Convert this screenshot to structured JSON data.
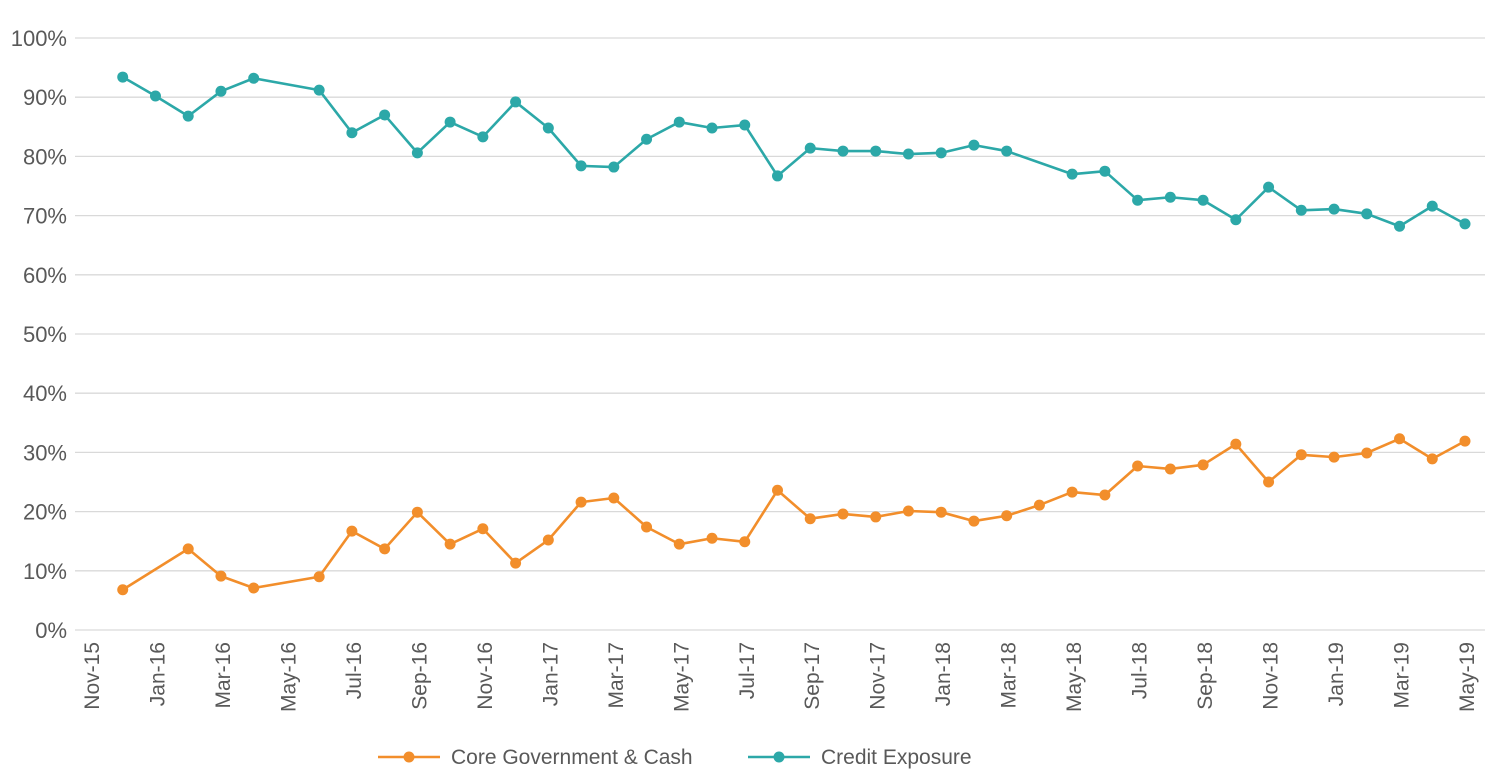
{
  "chart_data": {
    "type": "line",
    "title": "",
    "xlabel": "",
    "ylabel": "",
    "ylim": [
      0,
      100
    ],
    "y_ticks": [
      "0%",
      "10%",
      "20%",
      "30%",
      "40%",
      "50%",
      "60%",
      "70%",
      "80%",
      "90%",
      "100%"
    ],
    "x_ticks": [
      "Nov-15",
      "Jan-16",
      "Mar-16",
      "May-16",
      "Jul-16",
      "Sep-16",
      "Nov-16",
      "Jan-17",
      "Mar-17",
      "May-17",
      "Jul-17",
      "Sep-17",
      "Nov-17",
      "Jan-18",
      "Mar-18",
      "May-18",
      "Jul-18",
      "Sep-18",
      "Nov-18",
      "Jan-19",
      "Mar-19",
      "May-19"
    ],
    "xlim": [
      "Nov-15",
      "May-19"
    ],
    "grid": "horizontal",
    "legend_position": "bottom",
    "series": [
      {
        "name": "Core Government & Cash",
        "color": "#F28E2B",
        "points": [
          [
            "Dec-15",
            6.8
          ],
          [
            "Feb-16",
            13.7
          ],
          [
            "Mar-16",
            9.1
          ],
          [
            "Apr-16",
            7.1
          ],
          [
            "Jun-16",
            9.0
          ],
          [
            "Jul-16",
            16.7
          ],
          [
            "Aug-16",
            13.7
          ],
          [
            "Sep-16",
            19.9
          ],
          [
            "Oct-16",
            14.5
          ],
          [
            "Nov-16",
            17.1
          ],
          [
            "Dec-16",
            11.3
          ],
          [
            "Jan-17",
            15.2
          ],
          [
            "Feb-17",
            21.6
          ],
          [
            "Mar-17",
            22.3
          ],
          [
            "Apr-17",
            17.4
          ],
          [
            "May-17",
            14.5
          ],
          [
            "Jun-17",
            15.5
          ],
          [
            "Jul-17",
            14.9
          ],
          [
            "Aug-17",
            23.6
          ],
          [
            "Sep-17",
            18.8
          ],
          [
            "Oct-17",
            19.6
          ],
          [
            "Nov-17",
            19.1
          ],
          [
            "Dec-17",
            20.1
          ],
          [
            "Jan-18",
            19.9
          ],
          [
            "Feb-18",
            18.4
          ],
          [
            "Mar-18",
            19.3
          ],
          [
            "Apr-18",
            21.1
          ],
          [
            "May-18",
            23.3
          ],
          [
            "Jun-18",
            22.8
          ],
          [
            "Jul-18",
            27.7
          ],
          [
            "Aug-18",
            27.2
          ],
          [
            "Sep-18",
            27.9
          ],
          [
            "Oct-18",
            31.4
          ],
          [
            "Nov-18",
            25.0
          ],
          [
            "Dec-18",
            29.6
          ],
          [
            "Jan-19",
            29.2
          ],
          [
            "Feb-19",
            29.9
          ],
          [
            "Mar-19",
            32.3
          ],
          [
            "Apr-19",
            28.9
          ],
          [
            "May-19",
            31.9
          ]
        ]
      },
      {
        "name": "Credit Exposure",
        "color": "#2CA8A8",
        "points": [
          [
            "Dec-15",
            93.4
          ],
          [
            "Jan-16",
            90.2
          ],
          [
            "Feb-16",
            86.8
          ],
          [
            "Mar-16",
            91.0
          ],
          [
            "Apr-16",
            93.2
          ],
          [
            "Jun-16",
            91.2
          ],
          [
            "Jul-16",
            84.0
          ],
          [
            "Aug-16",
            87.0
          ],
          [
            "Sep-16",
            80.6
          ],
          [
            "Oct-16",
            85.8
          ],
          [
            "Nov-16",
            83.3
          ],
          [
            "Dec-16",
            89.2
          ],
          [
            "Jan-17",
            84.8
          ],
          [
            "Feb-17",
            78.4
          ],
          [
            "Mar-17",
            78.2
          ],
          [
            "Apr-17",
            82.9
          ],
          [
            "May-17",
            85.8
          ],
          [
            "Jun-17",
            84.8
          ],
          [
            "Jul-17",
            85.3
          ],
          [
            "Aug-17",
            76.7
          ],
          [
            "Sep-17",
            81.4
          ],
          [
            "Oct-17",
            80.9
          ],
          [
            "Nov-17",
            80.9
          ],
          [
            "Dec-17",
            80.4
          ],
          [
            "Jan-18",
            80.6
          ],
          [
            "Feb-18",
            81.9
          ],
          [
            "Mar-18",
            80.9
          ],
          [
            "May-18",
            77.0
          ],
          [
            "Jun-18",
            77.5
          ],
          [
            "Jul-18",
            72.6
          ],
          [
            "Aug-18",
            73.1
          ],
          [
            "Sep-18",
            72.6
          ],
          [
            "Oct-18",
            69.3
          ],
          [
            "Nov-18",
            74.8
          ],
          [
            "Dec-18",
            70.9
          ],
          [
            "Jan-19",
            71.1
          ],
          [
            "Feb-19",
            70.3
          ],
          [
            "Mar-19",
            68.2
          ],
          [
            "Apr-19",
            71.6
          ],
          [
            "May-19",
            68.6
          ]
        ]
      }
    ]
  }
}
